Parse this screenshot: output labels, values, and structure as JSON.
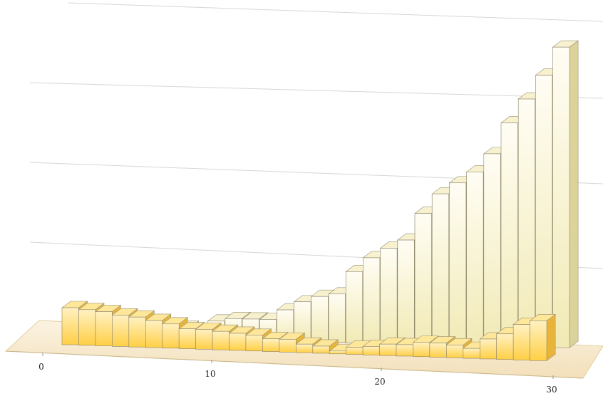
{
  "chart_data": {
    "type": "bar",
    "style": "3d",
    "title": "",
    "xlabel": "",
    "ylabel": "",
    "x_ticks": [
      "0",
      "10",
      "20",
      "30"
    ],
    "x": [
      1,
      2,
      3,
      4,
      5,
      6,
      7,
      8,
      9,
      10,
      11,
      12,
      13,
      14,
      15,
      16,
      17,
      18,
      19,
      20,
      21,
      22,
      23,
      24,
      25,
      26,
      27,
      28,
      29
    ],
    "series": [
      {
        "depth": "back",
        "color": "#f5f0c4",
        "values": [
          12,
          12,
          11,
          10,
          10,
          9,
          8,
          6,
          13,
          15,
          15,
          15,
          22,
          28,
          32,
          34,
          50,
          60,
          67,
          73,
          92,
          106,
          114,
          122,
          135,
          157,
          174,
          191,
          211
        ]
      },
      {
        "depth": "front",
        "color": "#ffd24a",
        "values": [
          26,
          25,
          24,
          22,
          21,
          19,
          17,
          14,
          14,
          13,
          12,
          11,
          9,
          9,
          6,
          5,
          2,
          5,
          6,
          8,
          8,
          10,
          10,
          9,
          7,
          14,
          18,
          25,
          28
        ]
      }
    ],
    "grid": true,
    "legend": "none",
    "colors": {
      "back": "#f5f0c4",
      "front": "#ffd24a",
      "floor": "#f6e6c6"
    }
  }
}
